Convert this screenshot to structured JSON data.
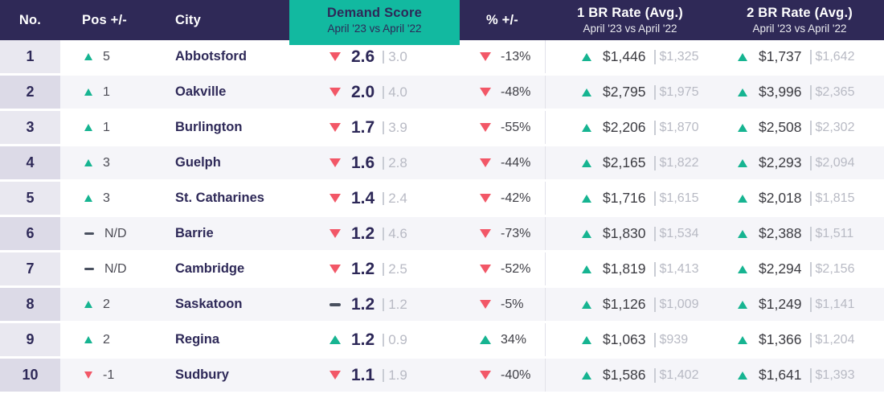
{
  "chart_data": {
    "type": "table",
    "header": {
      "no": "No.",
      "pos": "Pos +/-",
      "city": "City",
      "demand": "Demand Score",
      "demand_sub": "April '23 vs April '22",
      "pct": "% +/-",
      "br1": "1 BR Rate (Avg.)",
      "br1_sub": "April '23 vs April '22",
      "br2": "2 BR Rate (Avg.)",
      "br2_sub": "April '23 vs April '22"
    },
    "rows": [
      {
        "no": "1",
        "pos_dir": "up",
        "pos": "5",
        "city": "Abbotsford",
        "demand_dir": "down",
        "demand": "2.6",
        "demand_old": "3.0",
        "pct_dir": "down",
        "pct": "-13%",
        "br1_dir": "up",
        "br1": "$1,446",
        "br1_old": "$1,325",
        "br2_dir": "up",
        "br2": "$1,737",
        "br2_old": "$1,642"
      },
      {
        "no": "2",
        "pos_dir": "up",
        "pos": "1",
        "city": "Oakville",
        "demand_dir": "down",
        "demand": "2.0",
        "demand_old": "4.0",
        "pct_dir": "down",
        "pct": "-48%",
        "br1_dir": "up",
        "br1": "$2,795",
        "br1_old": "$1,975",
        "br2_dir": "up",
        "br2": "$3,996",
        "br2_old": "$2,365"
      },
      {
        "no": "3",
        "pos_dir": "up",
        "pos": "1",
        "city": "Burlington",
        "demand_dir": "down",
        "demand": "1.7",
        "demand_old": "3.9",
        "pct_dir": "down",
        "pct": "-55%",
        "br1_dir": "up",
        "br1": "$2,206",
        "br1_old": "$1,870",
        "br2_dir": "up",
        "br2": "$2,508",
        "br2_old": "$2,302"
      },
      {
        "no": "4",
        "pos_dir": "up",
        "pos": "3",
        "city": "Guelph",
        "demand_dir": "down",
        "demand": "1.6",
        "demand_old": "2.8",
        "pct_dir": "down",
        "pct": "-44%",
        "br1_dir": "up",
        "br1": "$2,165",
        "br1_old": "$1,822",
        "br2_dir": "up",
        "br2": "$2,293",
        "br2_old": "$2,094"
      },
      {
        "no": "5",
        "pos_dir": "up",
        "pos": "3",
        "city": "St. Catharines",
        "demand_dir": "down",
        "demand": "1.4",
        "demand_old": "2.4",
        "pct_dir": "down",
        "pct": "-42%",
        "br1_dir": "up",
        "br1": "$1,716",
        "br1_old": "$1,615",
        "br2_dir": "up",
        "br2": "$2,018",
        "br2_old": "$1,815"
      },
      {
        "no": "6",
        "pos_dir": "flat",
        "pos": "N/D",
        "city": "Barrie",
        "demand_dir": "down",
        "demand": "1.2",
        "demand_old": "4.6",
        "pct_dir": "down",
        "pct": "-73%",
        "br1_dir": "up",
        "br1": "$1,830",
        "br1_old": "$1,534",
        "br2_dir": "up",
        "br2": "$2,388",
        "br2_old": "$1,511"
      },
      {
        "no": "7",
        "pos_dir": "flat",
        "pos": "N/D",
        "city": "Cambridge",
        "demand_dir": "down",
        "demand": "1.2",
        "demand_old": "2.5",
        "pct_dir": "down",
        "pct": "-52%",
        "br1_dir": "up",
        "br1": "$1,819",
        "br1_old": "$1,413",
        "br2_dir": "up",
        "br2": "$2,294",
        "br2_old": "$2,156"
      },
      {
        "no": "8",
        "pos_dir": "up",
        "pos": "2",
        "city": "Saskatoon",
        "demand_dir": "flat",
        "demand": "1.2",
        "demand_old": "1.2",
        "pct_dir": "down",
        "pct": "-5%",
        "br1_dir": "up",
        "br1": "$1,126",
        "br1_old": "$1,009",
        "br2_dir": "up",
        "br2": "$1,249",
        "br2_old": "$1,141"
      },
      {
        "no": "9",
        "pos_dir": "up",
        "pos": "2",
        "city": "Regina",
        "demand_dir": "up",
        "demand": "1.2",
        "demand_old": "0.9",
        "pct_dir": "up",
        "pct": "34%",
        "br1_dir": "up",
        "br1": "$1,063",
        "br1_old": "$939",
        "br2_dir": "up",
        "br2": "$1,366",
        "br2_old": "$1,204"
      },
      {
        "no": "10",
        "pos_dir": "down",
        "pos": "-1",
        "city": "Sudbury",
        "demand_dir": "down",
        "demand": "1.1",
        "demand_old": "1.9",
        "pct_dir": "down",
        "pct": "-40%",
        "br1_dir": "up",
        "br1": "$1,586",
        "br1_old": "$1,402",
        "br2_dir": "up",
        "br2": "$1,641",
        "br2_old": "$1,393"
      }
    ],
    "colors": {
      "header_bg": "#2f2957",
      "accent_teal": "#12b9a0",
      "up_green": "#16b491",
      "down_red": "#f25767",
      "navy_text": "#2e2958",
      "old_value_gray": "#b8bac4"
    }
  }
}
